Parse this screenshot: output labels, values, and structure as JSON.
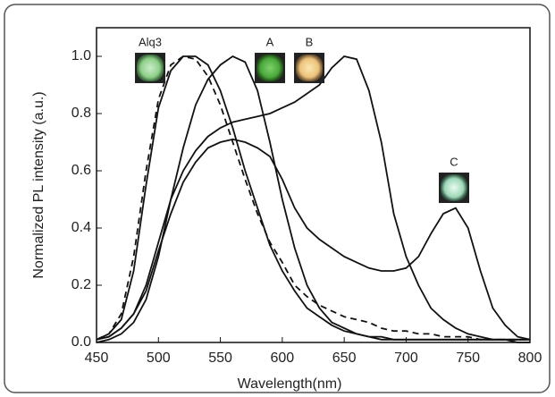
{
  "chart_data": {
    "type": "line",
    "x_label": "Wavelength(nm)",
    "y_label": "Normalized PL intensity (a.u.)",
    "x": [
      450,
      460,
      470,
      480,
      490,
      500,
      510,
      520,
      530,
      540,
      550,
      560,
      570,
      580,
      590,
      600,
      610,
      620,
      630,
      640,
      650,
      660,
      670,
      680,
      690,
      700,
      710,
      720,
      730,
      740,
      750,
      760,
      770,
      780,
      790,
      800
    ],
    "series": [
      {
        "color": "#111111",
        "dashed": true,
        "values": [
          0.01,
          0.03,
          0.1,
          0.3,
          0.6,
          0.85,
          0.97,
          1.0,
          0.99,
          0.93,
          0.83,
          0.7,
          0.57,
          0.45,
          0.35,
          0.28,
          0.2,
          0.16,
          0.13,
          0.11,
          0.09,
          0.08,
          0.07,
          0.05,
          0.04,
          0.04,
          0.03,
          0.03,
          0.02,
          0.02,
          0.02,
          0.01,
          0.01,
          0.01,
          0.01,
          0.01
        ]
      },
      {
        "color": "#111111",
        "dashed": false,
        "values": [
          0.01,
          0.03,
          0.08,
          0.25,
          0.55,
          0.82,
          0.95,
          1.0,
          1.0,
          0.97,
          0.88,
          0.75,
          0.6,
          0.47,
          0.34,
          0.25,
          0.18,
          0.12,
          0.09,
          0.06,
          0.04,
          0.03,
          0.02,
          0.02,
          0.01,
          0.01,
          0.01,
          0.01,
          0.01,
          0.01,
          0.01,
          0.01,
          0.01,
          0.01,
          0.01,
          0.01
        ]
      },
      {
        "color": "#111111",
        "dashed": false,
        "values": [
          0.0,
          0.01,
          0.03,
          0.07,
          0.15,
          0.3,
          0.5,
          0.68,
          0.83,
          0.92,
          0.97,
          1.0,
          0.98,
          0.88,
          0.7,
          0.5,
          0.33,
          0.2,
          0.12,
          0.07,
          0.05,
          0.03,
          0.02,
          0.01,
          0.01,
          0.01,
          0.01,
          0.01,
          0.01,
          0.01,
          0.01,
          0.01,
          0.01,
          0.01,
          0.01,
          0.01
        ]
      },
      {
        "color": "#111111",
        "dashed": false,
        "values": [
          0.01,
          0.02,
          0.05,
          0.1,
          0.2,
          0.35,
          0.5,
          0.6,
          0.67,
          0.72,
          0.75,
          0.77,
          0.78,
          0.79,
          0.8,
          0.82,
          0.84,
          0.87,
          0.9,
          0.96,
          1.0,
          0.99,
          0.88,
          0.7,
          0.45,
          0.3,
          0.2,
          0.12,
          0.08,
          0.05,
          0.03,
          0.02,
          0.01,
          0.01,
          0.0,
          0.0
        ]
      },
      {
        "color": "#111111",
        "dashed": false,
        "values": [
          0.01,
          0.02,
          0.05,
          0.1,
          0.18,
          0.32,
          0.45,
          0.56,
          0.63,
          0.68,
          0.7,
          0.71,
          0.7,
          0.68,
          0.65,
          0.57,
          0.47,
          0.4,
          0.36,
          0.33,
          0.3,
          0.28,
          0.26,
          0.25,
          0.25,
          0.26,
          0.3,
          0.38,
          0.45,
          0.47,
          0.4,
          0.25,
          0.12,
          0.06,
          0.02,
          0.01
        ]
      }
    ],
    "annotations": [
      "Alq3",
      "A",
      "B",
      "C"
    ],
    "xlim": [
      450,
      800
    ],
    "xticks": [
      450,
      500,
      550,
      600,
      650,
      700,
      750,
      800
    ],
    "ylim": [
      0,
      1.1
    ],
    "yticks": [
      {
        "value": 0,
        "label": "0.0"
      },
      0.2,
      0.4,
      0.6,
      0.8,
      {
        "value": 1,
        "label": "1.0"
      }
    ]
  }
}
